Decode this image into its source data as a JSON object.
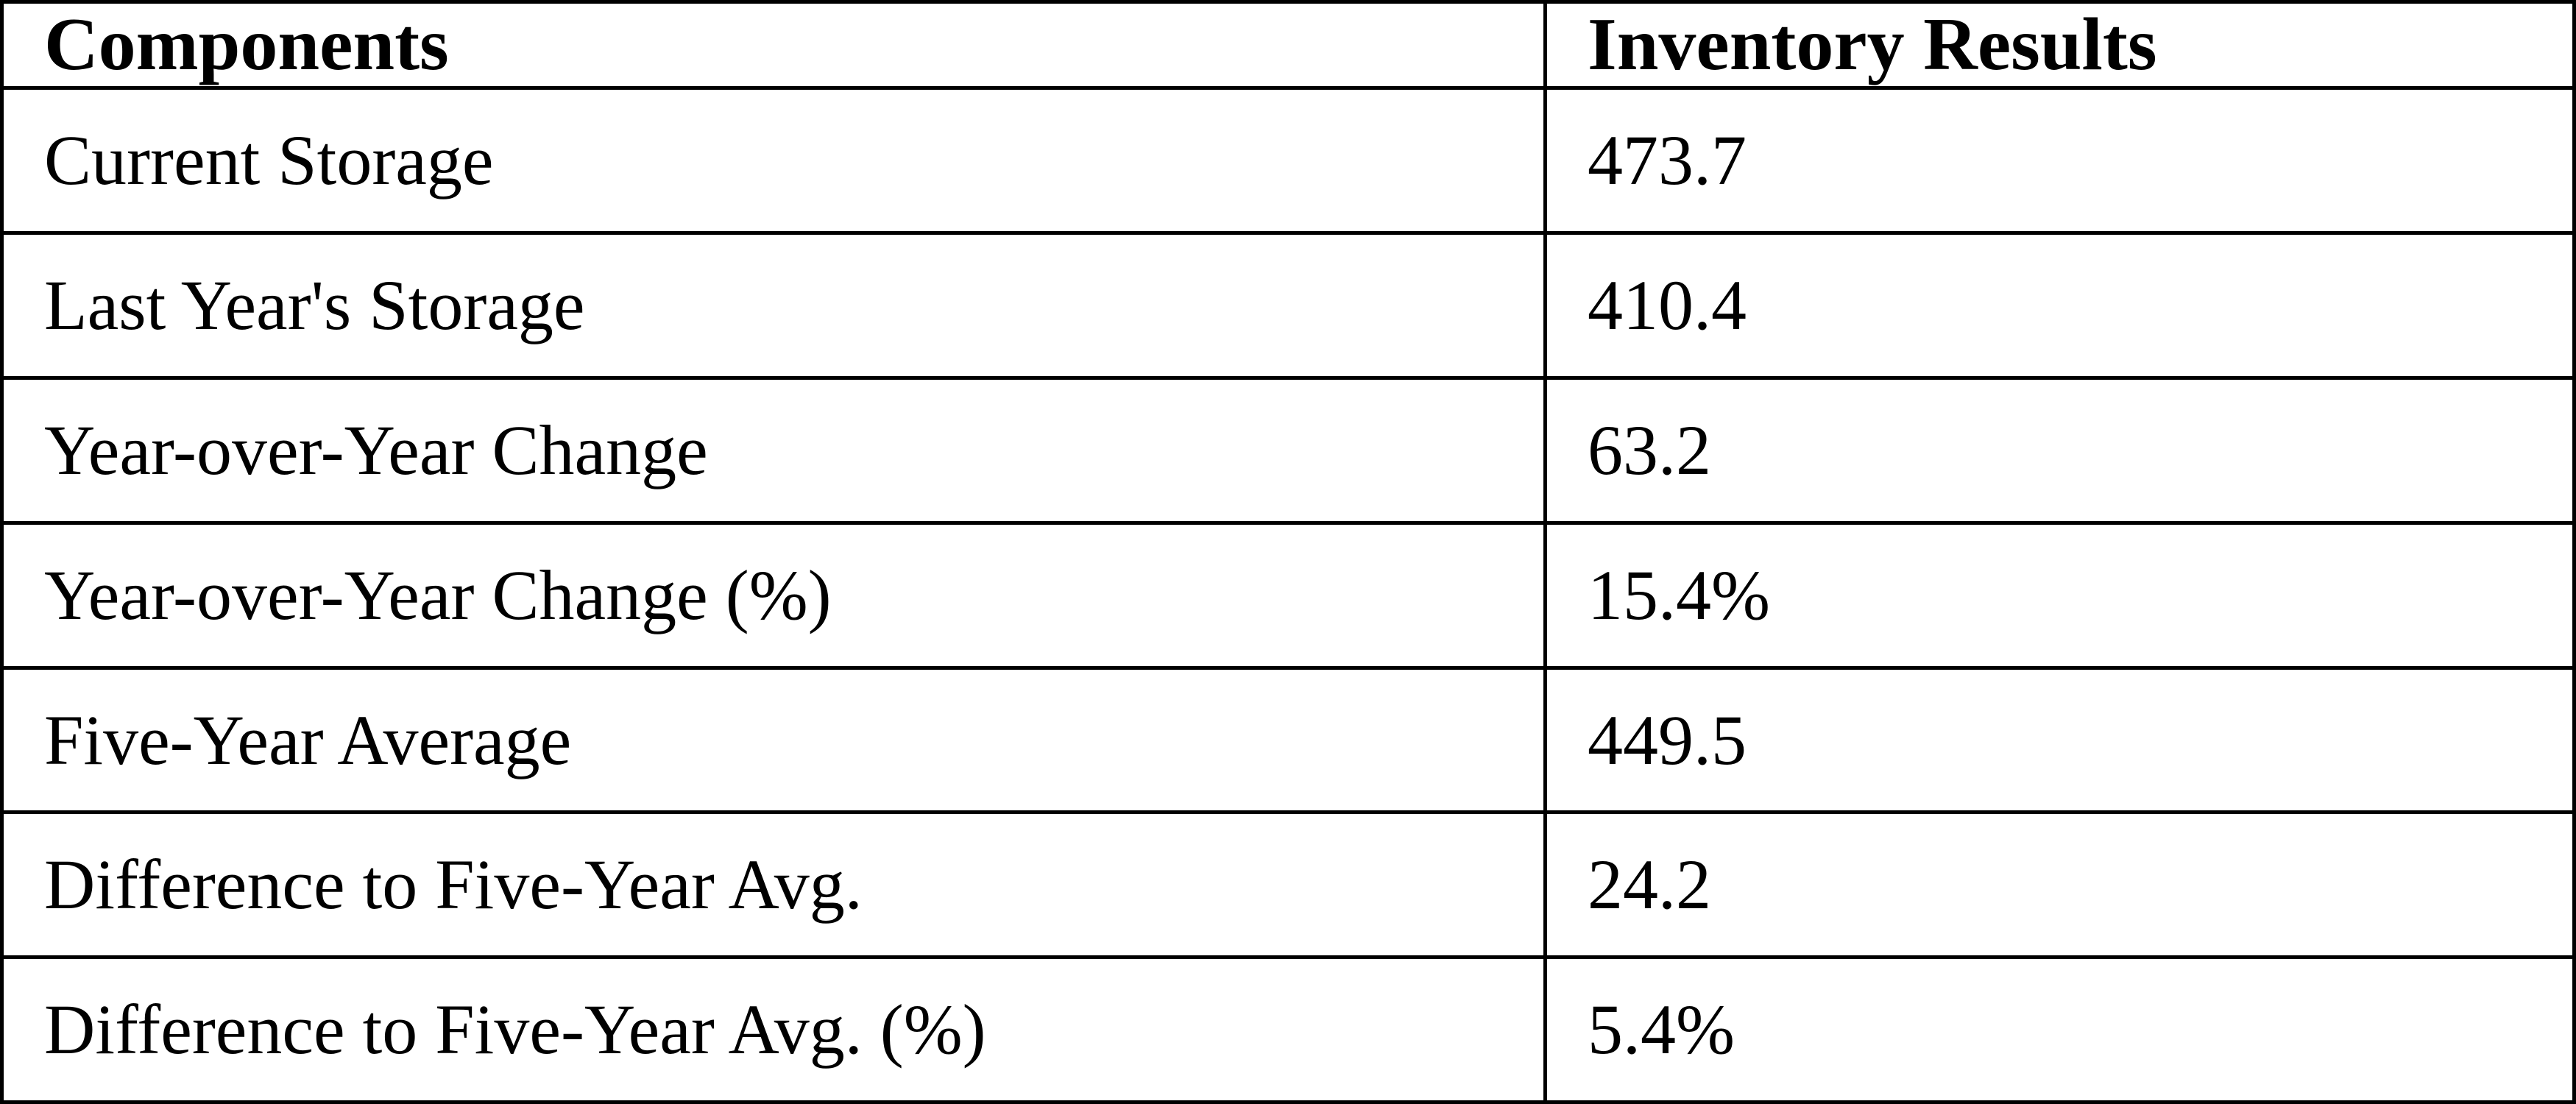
{
  "chart_data": {
    "type": "table",
    "title": "",
    "columns": [
      "Components",
      "Inventory Results"
    ],
    "rows": [
      [
        "Current Storage",
        "473.7"
      ],
      [
        "Last Year's Storage",
        "410.4"
      ],
      [
        "Year-over-Year Change",
        "63.2"
      ],
      [
        "Year-over-Year Change (%)",
        "15.4%"
      ],
      [
        "Five-Year Average",
        "449.5"
      ],
      [
        "Difference to Five-Year Avg.",
        "24.2"
      ],
      [
        "Difference to Five-Year Avg. (%)",
        "5.4%"
      ]
    ]
  },
  "colors": {
    "border": "#000000",
    "background": "#ffffff",
    "text": "#000000"
  }
}
